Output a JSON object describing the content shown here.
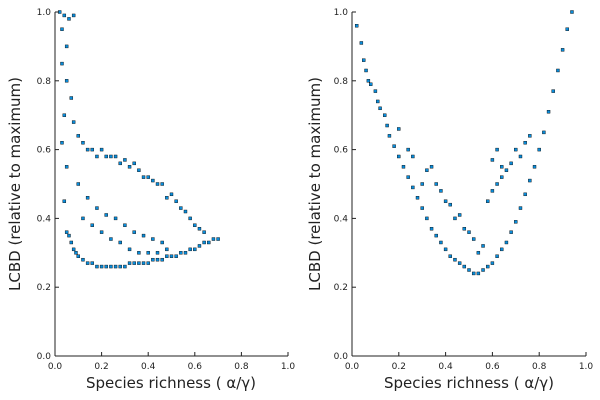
{
  "chart_data": [
    {
      "type": "scatter",
      "xlabel": "Species richness (  α/γ)",
      "ylabel": "LCBD (relative to maximum)",
      "xlim": [
        0,
        1
      ],
      "ylim": [
        0,
        1
      ],
      "xticks": [
        0.0,
        0.2,
        0.4,
        0.6,
        0.8,
        1.0
      ],
      "yticks": [
        0.0,
        0.2,
        0.4,
        0.6,
        0.8,
        1.0
      ],
      "xtick_labels": [
        "0.0",
        "0.2",
        "0.4",
        "0.6",
        "0.8",
        "1.0"
      ],
      "ytick_labels": [
        "0.0",
        "0.2",
        "0.4",
        "0.6",
        "0.8",
        "1.0"
      ],
      "grid": false,
      "legend": "none",
      "marker_color": "#0a8bd8",
      "marker_stroke": "#000000",
      "series": [
        {
          "points": [
            [
              0.02,
              1.0
            ],
            [
              0.03,
              0.95
            ],
            [
              0.04,
              0.99
            ],
            [
              0.05,
              0.9
            ],
            [
              0.06,
              0.98
            ],
            [
              0.08,
              0.99
            ],
            [
              0.03,
              0.85
            ],
            [
              0.05,
              0.8
            ],
            [
              0.07,
              0.75
            ],
            [
              0.04,
              0.7
            ],
            [
              0.03,
              0.62
            ],
            [
              0.05,
              0.55
            ],
            [
              0.04,
              0.45
            ],
            [
              0.05,
              0.36
            ],
            [
              0.06,
              0.35
            ],
            [
              0.07,
              0.33
            ],
            [
              0.08,
              0.31
            ],
            [
              0.09,
              0.3
            ],
            [
              0.1,
              0.29
            ],
            [
              0.12,
              0.28
            ],
            [
              0.14,
              0.27
            ],
            [
              0.16,
              0.27
            ],
            [
              0.18,
              0.26
            ],
            [
              0.2,
              0.26
            ],
            [
              0.22,
              0.26
            ],
            [
              0.24,
              0.26
            ],
            [
              0.26,
              0.26
            ],
            [
              0.28,
              0.26
            ],
            [
              0.3,
              0.26
            ],
            [
              0.32,
              0.27
            ],
            [
              0.34,
              0.27
            ],
            [
              0.36,
              0.27
            ],
            [
              0.38,
              0.27
            ],
            [
              0.4,
              0.27
            ],
            [
              0.42,
              0.28
            ],
            [
              0.44,
              0.28
            ],
            [
              0.46,
              0.28
            ],
            [
              0.48,
              0.29
            ],
            [
              0.5,
              0.29
            ],
            [
              0.52,
              0.29
            ],
            [
              0.54,
              0.3
            ],
            [
              0.56,
              0.3
            ],
            [
              0.58,
              0.31
            ],
            [
              0.6,
              0.31
            ],
            [
              0.62,
              0.32
            ],
            [
              0.64,
              0.33
            ],
            [
              0.66,
              0.33
            ],
            [
              0.68,
              0.34
            ],
            [
              0.7,
              0.34
            ],
            [
              0.08,
              0.68
            ],
            [
              0.1,
              0.64
            ],
            [
              0.12,
              0.62
            ],
            [
              0.14,
              0.6
            ],
            [
              0.16,
              0.6
            ],
            [
              0.18,
              0.58
            ],
            [
              0.2,
              0.6
            ],
            [
              0.22,
              0.58
            ],
            [
              0.24,
              0.58
            ],
            [
              0.26,
              0.58
            ],
            [
              0.28,
              0.56
            ],
            [
              0.3,
              0.57
            ],
            [
              0.32,
              0.55
            ],
            [
              0.34,
              0.56
            ],
            [
              0.36,
              0.54
            ],
            [
              0.38,
              0.52
            ],
            [
              0.4,
              0.52
            ],
            [
              0.42,
              0.51
            ],
            [
              0.44,
              0.5
            ],
            [
              0.46,
              0.5
            ],
            [
              0.48,
              0.46
            ],
            [
              0.5,
              0.47
            ],
            [
              0.52,
              0.45
            ],
            [
              0.54,
              0.43
            ],
            [
              0.56,
              0.42
            ],
            [
              0.58,
              0.4
            ],
            [
              0.6,
              0.38
            ],
            [
              0.62,
              0.37
            ],
            [
              0.64,
              0.36
            ],
            [
              0.1,
              0.5
            ],
            [
              0.14,
              0.46
            ],
            [
              0.18,
              0.43
            ],
            [
              0.22,
              0.41
            ],
            [
              0.26,
              0.4
            ],
            [
              0.3,
              0.38
            ],
            [
              0.34,
              0.36
            ],
            [
              0.38,
              0.35
            ],
            [
              0.42,
              0.34
            ],
            [
              0.46,
              0.33
            ],
            [
              0.12,
              0.4
            ],
            [
              0.16,
              0.38
            ],
            [
              0.2,
              0.36
            ],
            [
              0.24,
              0.34
            ],
            [
              0.28,
              0.33
            ],
            [
              0.32,
              0.31
            ],
            [
              0.36,
              0.3
            ],
            [
              0.4,
              0.3
            ],
            [
              0.44,
              0.3
            ],
            [
              0.48,
              0.31
            ]
          ]
        }
      ]
    },
    {
      "type": "scatter",
      "xlabel": "Species richness (  α/γ)",
      "ylabel": "LCBD (relative to maximum)",
      "xlim": [
        0,
        1
      ],
      "ylim": [
        0,
        1
      ],
      "xticks": [
        0.0,
        0.2,
        0.4,
        0.6,
        0.8,
        1.0
      ],
      "yticks": [
        0.0,
        0.2,
        0.4,
        0.6,
        0.8,
        1.0
      ],
      "xtick_labels": [
        "0.0",
        "0.2",
        "0.4",
        "0.6",
        "0.8",
        "1.0"
      ],
      "ytick_labels": [
        "0.0",
        "0.2",
        "0.4",
        "0.6",
        "0.8",
        "1.0"
      ],
      "grid": false,
      "legend": "none",
      "marker_color": "#0a8bd8",
      "marker_stroke": "#000000",
      "series": [
        {
          "points": [
            [
              0.02,
              0.96
            ],
            [
              0.04,
              0.91
            ],
            [
              0.05,
              0.86
            ],
            [
              0.06,
              0.83
            ],
            [
              0.07,
              0.8
            ],
            [
              0.08,
              0.79
            ],
            [
              0.1,
              0.77
            ],
            [
              0.11,
              0.74
            ],
            [
              0.12,
              0.72
            ],
            [
              0.14,
              0.7
            ],
            [
              0.15,
              0.67
            ],
            [
              0.16,
              0.64
            ],
            [
              0.18,
              0.61
            ],
            [
              0.2,
              0.58
            ],
            [
              0.22,
              0.55
            ],
            [
              0.24,
              0.52
            ],
            [
              0.26,
              0.49
            ],
            [
              0.28,
              0.46
            ],
            [
              0.3,
              0.43
            ],
            [
              0.32,
              0.4
            ],
            [
              0.34,
              0.37
            ],
            [
              0.36,
              0.35
            ],
            [
              0.38,
              0.33
            ],
            [
              0.4,
              0.31
            ],
            [
              0.42,
              0.29
            ],
            [
              0.44,
              0.28
            ],
            [
              0.46,
              0.27
            ],
            [
              0.48,
              0.26
            ],
            [
              0.5,
              0.25
            ],
            [
              0.52,
              0.24
            ],
            [
              0.54,
              0.24
            ],
            [
              0.56,
              0.25
            ],
            [
              0.58,
              0.26
            ],
            [
              0.6,
              0.27
            ],
            [
              0.62,
              0.29
            ],
            [
              0.64,
              0.31
            ],
            [
              0.66,
              0.33
            ],
            [
              0.68,
              0.36
            ],
            [
              0.7,
              0.39
            ],
            [
              0.72,
              0.43
            ],
            [
              0.74,
              0.47
            ],
            [
              0.76,
              0.51
            ],
            [
              0.78,
              0.55
            ],
            [
              0.8,
              0.6
            ],
            [
              0.82,
              0.65
            ],
            [
              0.84,
              0.71
            ],
            [
              0.86,
              0.77
            ],
            [
              0.88,
              0.83
            ],
            [
              0.9,
              0.89
            ],
            [
              0.92,
              0.95
            ],
            [
              0.94,
              1.0
            ],
            [
              0.2,
              0.66
            ],
            [
              0.26,
              0.58
            ],
            [
              0.32,
              0.54
            ],
            [
              0.34,
              0.55
            ],
            [
              0.36,
              0.5
            ],
            [
              0.4,
              0.45
            ],
            [
              0.44,
              0.4
            ],
            [
              0.48,
              0.37
            ],
            [
              0.52,
              0.34
            ],
            [
              0.56,
              0.32
            ],
            [
              0.58,
              0.45
            ],
            [
              0.6,
              0.48
            ],
            [
              0.62,
              0.5
            ],
            [
              0.64,
              0.52
            ],
            [
              0.66,
              0.54
            ],
            [
              0.68,
              0.56
            ],
            [
              0.7,
              0.6
            ],
            [
              0.72,
              0.58
            ],
            [
              0.74,
              0.62
            ],
            [
              0.76,
              0.64
            ],
            [
              0.6,
              0.57
            ],
            [
              0.62,
              0.6
            ],
            [
              0.64,
              0.55
            ],
            [
              0.38,
              0.48
            ],
            [
              0.42,
              0.44
            ],
            [
              0.46,
              0.41
            ],
            [
              0.5,
              0.36
            ],
            [
              0.54,
              0.3
            ],
            [
              0.3,
              0.5
            ],
            [
              0.24,
              0.6
            ]
          ]
        }
      ]
    }
  ]
}
